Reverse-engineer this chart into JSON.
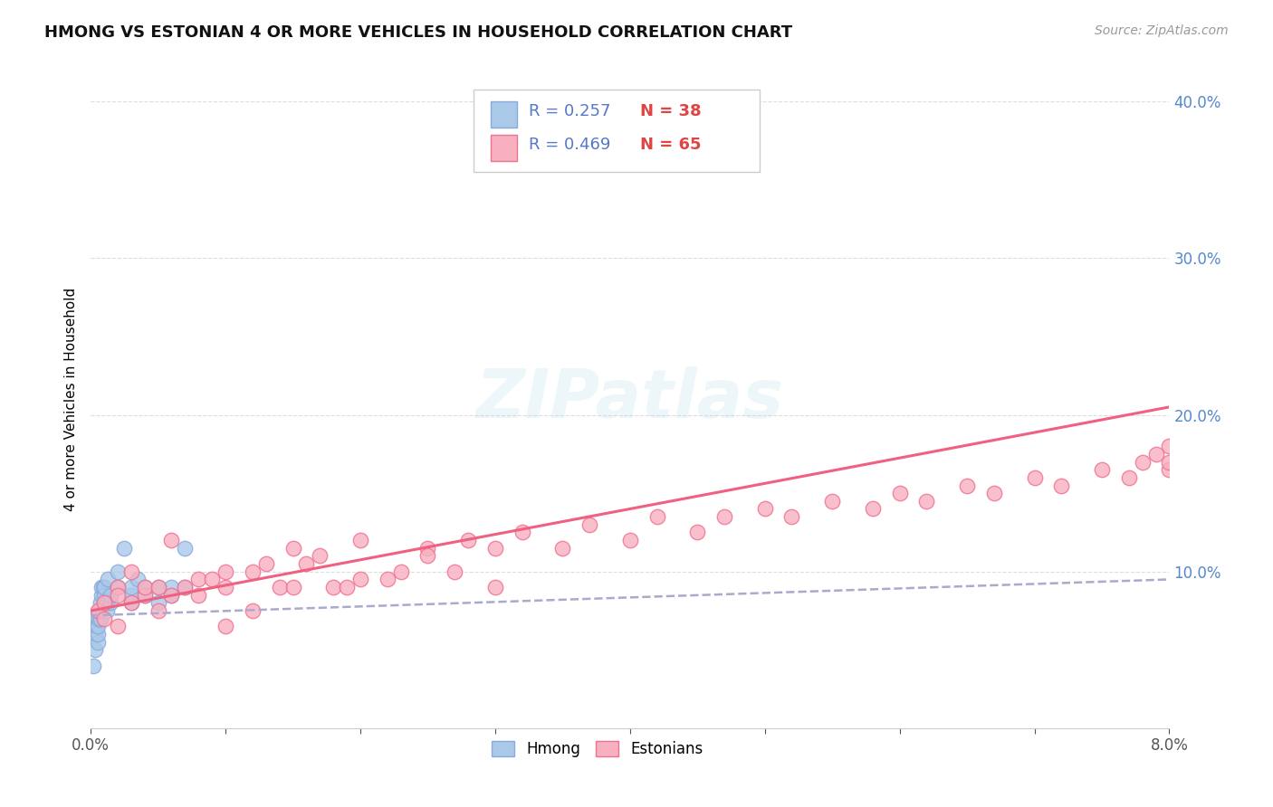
{
  "title": "HMONG VS ESTONIAN 4 OR MORE VEHICLES IN HOUSEHOLD CORRELATION CHART",
  "source": "Source: ZipAtlas.com",
  "ylabel": "4 or more Vehicles in Household",
  "xlim": [
    0.0,
    0.08
  ],
  "ylim": [
    0.0,
    0.42
  ],
  "xticks": [
    0.0,
    0.01,
    0.02,
    0.03,
    0.04,
    0.05,
    0.06,
    0.07,
    0.08
  ],
  "xticklabels": [
    "0.0%",
    "",
    "",
    "",
    "",
    "",
    "",
    "",
    "8.0%"
  ],
  "yticks_right": [
    0.1,
    0.2,
    0.3,
    0.4
  ],
  "ytick_labels_right": [
    "10.0%",
    "20.0%",
    "30.0%",
    "40.0%"
  ],
  "hmong_color": "#aac8e8",
  "estonian_color": "#f8b0c0",
  "hmong_edge_color": "#88aadd",
  "estonian_edge_color": "#f07090",
  "hmong_line_color": "#aaaacc",
  "estonian_line_color": "#f06080",
  "legend_r_hmong": "R = 0.257",
  "legend_n_hmong": "N = 38",
  "legend_r_estonian": "R = 0.469",
  "legend_n_estonian": "N = 65",
  "watermark": "ZIPatlas",
  "background_color": "#ffffff",
  "grid_color": "#dddddd",
  "hmong_x": [
    0.0002,
    0.0003,
    0.0003,
    0.0004,
    0.0004,
    0.0005,
    0.0005,
    0.0005,
    0.0006,
    0.0006,
    0.0007,
    0.0007,
    0.0008,
    0.0008,
    0.0009,
    0.001,
    0.001,
    0.001,
    0.0012,
    0.0012,
    0.0013,
    0.0015,
    0.0015,
    0.002,
    0.002,
    0.0025,
    0.003,
    0.003,
    0.003,
    0.0035,
    0.004,
    0.004,
    0.005,
    0.005,
    0.006,
    0.006,
    0.007,
    0.007
  ],
  "hmong_y": [
    0.04,
    0.05,
    0.06,
    0.07,
    0.065,
    0.055,
    0.06,
    0.065,
    0.07,
    0.075,
    0.07,
    0.08,
    0.085,
    0.09,
    0.09,
    0.08,
    0.085,
    0.09,
    0.075,
    0.08,
    0.095,
    0.08,
    0.085,
    0.09,
    0.1,
    0.115,
    0.08,
    0.085,
    0.09,
    0.095,
    0.085,
    0.09,
    0.08,
    0.09,
    0.085,
    0.09,
    0.09,
    0.115
  ],
  "estonian_x": [
    0.0005,
    0.001,
    0.001,
    0.002,
    0.002,
    0.002,
    0.003,
    0.003,
    0.004,
    0.004,
    0.005,
    0.005,
    0.006,
    0.006,
    0.007,
    0.008,
    0.008,
    0.009,
    0.01,
    0.01,
    0.01,
    0.012,
    0.012,
    0.013,
    0.014,
    0.015,
    0.015,
    0.016,
    0.017,
    0.018,
    0.019,
    0.02,
    0.02,
    0.022,
    0.023,
    0.025,
    0.025,
    0.027,
    0.028,
    0.03,
    0.03,
    0.032,
    0.035,
    0.037,
    0.04,
    0.042,
    0.045,
    0.047,
    0.05,
    0.052,
    0.055,
    0.058,
    0.06,
    0.062,
    0.065,
    0.067,
    0.07,
    0.072,
    0.075,
    0.077,
    0.078,
    0.079,
    0.08,
    0.08,
    0.08
  ],
  "estonian_y": [
    0.075,
    0.08,
    0.07,
    0.09,
    0.085,
    0.065,
    0.1,
    0.08,
    0.085,
    0.09,
    0.09,
    0.075,
    0.12,
    0.085,
    0.09,
    0.085,
    0.095,
    0.095,
    0.09,
    0.1,
    0.065,
    0.1,
    0.075,
    0.105,
    0.09,
    0.115,
    0.09,
    0.105,
    0.11,
    0.09,
    0.09,
    0.095,
    0.12,
    0.095,
    0.1,
    0.115,
    0.11,
    0.1,
    0.12,
    0.115,
    0.09,
    0.125,
    0.115,
    0.13,
    0.12,
    0.135,
    0.125,
    0.135,
    0.14,
    0.135,
    0.145,
    0.14,
    0.15,
    0.145,
    0.155,
    0.15,
    0.16,
    0.155,
    0.165,
    0.16,
    0.17,
    0.175,
    0.18,
    0.165,
    0.17
  ],
  "hmong_trendline_x": [
    0.0,
    0.08
  ],
  "hmong_trendline_y": [
    0.072,
    0.095
  ],
  "estonian_trendline_x": [
    0.0,
    0.08
  ],
  "estonian_trendline_y": [
    0.075,
    0.205
  ]
}
